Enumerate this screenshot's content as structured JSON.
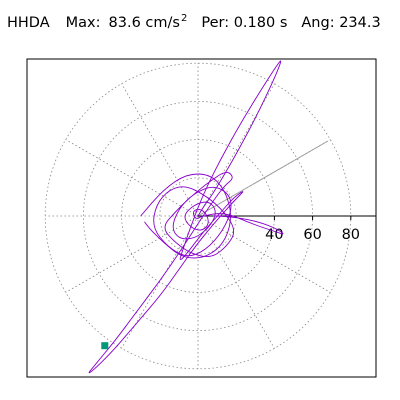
{
  "header": {
    "station": "HHDA",
    "max_label": "Max:",
    "max_value": "83.6",
    "max_unit": "cm/s",
    "max_unit_exp": "2",
    "per_label": "Per:",
    "per_value": "0.180 s",
    "ang_label": "Ang:",
    "ang_value": "234.3"
  },
  "chart_data": {
    "type": "line",
    "polar": true,
    "r_ticks": [
      "40",
      "60",
      "80"
    ],
    "r_tick_values": [
      40,
      60,
      80
    ],
    "r_grid": [
      20,
      40,
      60,
      80
    ],
    "angular_spokes_deg": [
      0,
      30,
      60,
      90,
      120,
      150,
      180,
      210,
      240,
      270,
      300,
      330
    ],
    "direction_line_deg": 30,
    "grid": true,
    "max_value": 83.6,
    "max_angle_deg": 234.3,
    "series": [
      {
        "trace": "particle-motion",
        "color": "#8800cc",
        "x": [
          0,
          3,
          8,
          14,
          22,
          31,
          40,
          44,
          42,
          33,
          22,
          12,
          3,
          -4,
          -8,
          -10,
          -6,
          3,
          12,
          19,
          25,
          19,
          10,
          0,
          -10,
          -20,
          -32,
          -44,
          -54,
          -58,
          -54,
          -44,
          -32,
          -20,
          -9,
          0,
          8,
          14,
          19,
          15,
          6,
          -4,
          -12,
          -19,
          -12,
          -3,
          7,
          15,
          20,
          14,
          5,
          -6,
          -15,
          -22,
          -24,
          -16,
          -6,
          4,
          13,
          18,
          16,
          8,
          -2,
          -10,
          -14,
          -10,
          -2,
          6,
          10,
          6,
          -2,
          -8,
          -4,
          2,
          6,
          4,
          0,
          -3,
          -1,
          2,
          14,
          28,
          40,
          46,
          40,
          28,
          14,
          2
        ],
        "y": [
          0,
          5,
          12,
          22,
          36,
          53,
          72,
          82,
          80,
          66,
          48,
          30,
          12,
          -6,
          -18,
          -24,
          -20,
          -8,
          2,
          10,
          14,
          8,
          -2,
          -14,
          -28,
          -42,
          -56,
          -70,
          -80,
          -83,
          -78,
          -66,
          -50,
          -34,
          -18,
          -4,
          8,
          16,
          20,
          24,
          18,
          10,
          2,
          -6,
          -14,
          -20,
          -22,
          -16,
          -8,
          2,
          10,
          16,
          14,
          6,
          -6,
          -16,
          -22,
          -18,
          -8,
          4,
          12,
          16,
          12,
          4,
          -6,
          -12,
          -12,
          -6,
          2,
          8,
          6,
          0,
          -6,
          -8,
          -4,
          2,
          4,
          2,
          -2,
          0,
          2,
          -4,
          -8,
          -10,
          -6,
          -2,
          0,
          0
        ]
      }
    ],
    "series_extra": [
      {
        "trace": "particle-motion-secondary",
        "color": "#8800cc",
        "x": [
          -30,
          -18,
          -6,
          6,
          14,
          18,
          14,
          4,
          -8,
          -18,
          -26,
          -30
        ],
        "y": [
          0,
          14,
          22,
          22,
          14,
          0,
          -14,
          -22,
          -22,
          -14,
          -6,
          0
        ]
      }
    ],
    "peak_marker": {
      "x": -48.8,
      "y": -67.9,
      "color": "#009977"
    }
  }
}
